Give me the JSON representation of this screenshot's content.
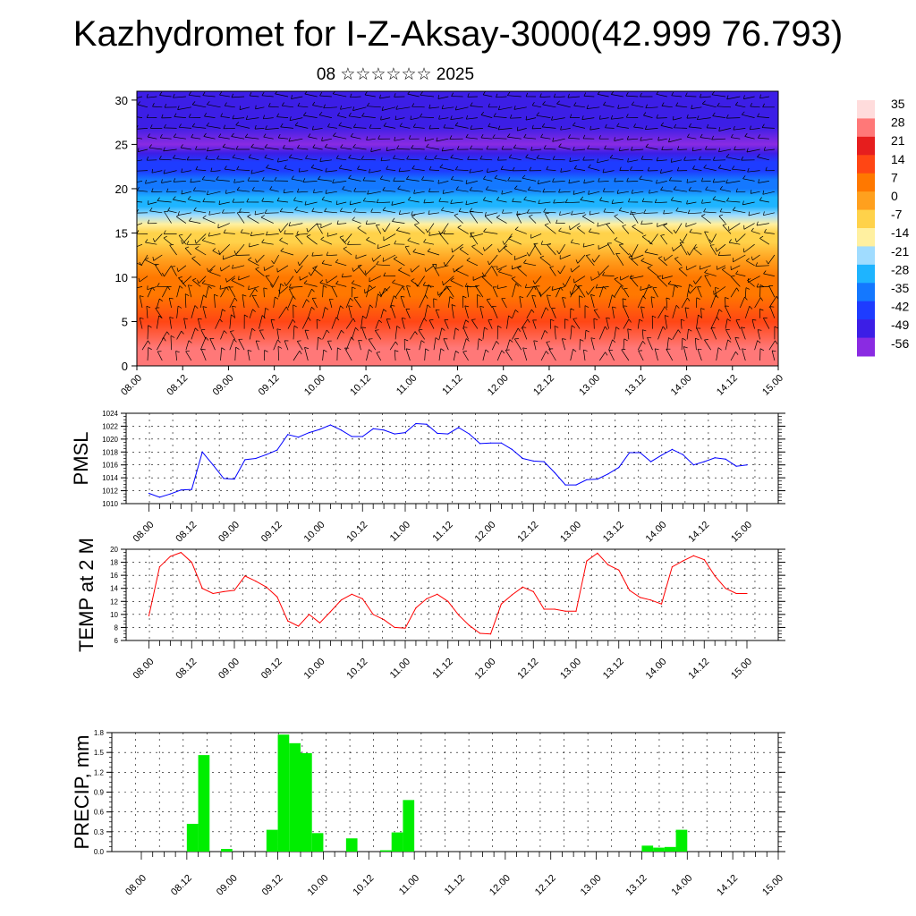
{
  "title": "Kazhydromet for I-Z-Aksay-3000(42.999 76.793)",
  "subtitle": "08 ☆☆☆☆☆☆ 2025",
  "time_labels": [
    "08.00",
    "08.12",
    "09.00",
    "09.12",
    "10.00",
    "10.12",
    "11.00",
    "11.12",
    "12.00",
    "12.12",
    "13.00",
    "13.12",
    "14.00",
    "14.12",
    "15.00"
  ],
  "chart_data": [
    {
      "type": "heatmap",
      "name": "cross-section",
      "x": [
        "08.00",
        "08.12",
        "09.00",
        "09.12",
        "10.00",
        "10.12",
        "11.00",
        "11.12",
        "12.00",
        "12.12",
        "13.00",
        "13.12",
        "14.00",
        "14.12",
        "15.00"
      ],
      "yticks": [
        0,
        5,
        10,
        15,
        20,
        25,
        30
      ],
      "ylim": [
        0,
        31
      ],
      "colorbar": {
        "labels": [
          "35",
          "28",
          "21",
          "14",
          "7",
          "0",
          "-7",
          "-14",
          "-21",
          "-28",
          "-35",
          "-42",
          "-49",
          "-56"
        ],
        "range": [
          -60,
          38
        ],
        "colors": [
          "#8a2be2",
          "#3c1ee6",
          "#1e3cff",
          "#1478ff",
          "#1eb4ff",
          "#a0dcff",
          "#fff0a0",
          "#ffd24a",
          "#ffa01e",
          "#ff7800",
          "#ff4614",
          "#e61e1e",
          "#ff7878",
          "#ffdcdc"
        ]
      },
      "temperature_profile": {
        "levels": [
          0,
          2,
          5,
          8,
          10,
          12,
          14,
          15,
          16,
          17,
          18,
          19,
          20,
          21,
          22,
          23,
          24,
          25,
          27,
          31
        ],
        "values": [
          28,
          24,
          14,
          7,
          3,
          -2,
          -7,
          -10,
          -16,
          -21,
          -26,
          -31,
          -35,
          -38,
          -42,
          -46,
          -52,
          -56,
          -49,
          -49
        ]
      },
      "wind_barbs": true
    },
    {
      "type": "line",
      "name": "PMSL",
      "ylabel": "PMSL",
      "yticks": [
        1010,
        1012,
        1014,
        1016,
        1018,
        1020,
        1022,
        1024
      ],
      "ylim": [
        1010,
        1024
      ],
      "color": "#0000ff",
      "values": [
        1011.6,
        1011.0,
        1011.5,
        1012.1,
        1012.2,
        1018.0,
        1016.0,
        1013.9,
        1013.8,
        1016.8,
        1017.0,
        1017.6,
        1018.3,
        1020.7,
        1020.3,
        1021.0,
        1021.5,
        1022.2,
        1021.4,
        1020.4,
        1020.4,
        1021.6,
        1021.4,
        1020.8,
        1021.0,
        1022.4,
        1022.3,
        1020.9,
        1020.8,
        1021.8,
        1020.8,
        1019.3,
        1019.4,
        1019.4,
        1018.4,
        1017.0,
        1016.6,
        1016.5,
        1014.8,
        1012.9,
        1012.9,
        1013.7,
        1013.8,
        1014.6,
        1015.6,
        1017.9,
        1017.9,
        1016.5,
        1017.5,
        1018.4,
        1017.6,
        1016.0,
        1016.5,
        1017.1,
        1016.9,
        1015.8,
        1016.0
      ]
    },
    {
      "type": "line",
      "name": "TEMP at 2 M",
      "ylabel": "TEMP at 2 M",
      "yticks": [
        6,
        8,
        10,
        12,
        14,
        16,
        18,
        20
      ],
      "ylim": [
        6,
        20
      ],
      "color": "#ff0000",
      "values": [
        9.8,
        17.3,
        18.9,
        19.5,
        18.0,
        14.0,
        13.2,
        13.5,
        13.7,
        15.9,
        15.1,
        14.2,
        12.7,
        9.0,
        8.2,
        10.0,
        8.7,
        10.4,
        12.2,
        13.1,
        12.4,
        10.0,
        9.2,
        8.0,
        7.9,
        11.0,
        12.4,
        13.1,
        12.0,
        9.9,
        8.3,
        7.1,
        7.0,
        11.6,
        13.0,
        14.2,
        13.5,
        10.8,
        10.8,
        10.5,
        10.5,
        18.2,
        19.4,
        17.6,
        16.8,
        13.7,
        12.6,
        12.2,
        11.6,
        17.3,
        18.2,
        19.0,
        18.4,
        15.9,
        14.0,
        13.2,
        13.2
      ]
    },
    {
      "type": "bar",
      "name": "PRECIP, mm",
      "ylabel": "PRECIP, mm",
      "yticks_labels": [
        "0.0",
        "0.3",
        "0.6",
        "0.9",
        "1.2",
        "1.5",
        "1.8"
      ],
      "yticks": [
        0,
        0.3,
        0.6,
        0.9,
        1.2,
        1.5,
        1.8
      ],
      "ylim": [
        0,
        1.8
      ],
      "color": "#00ee00",
      "values": [
        0,
        0,
        0,
        0,
        0,
        0.42,
        1.46,
        0,
        0.04,
        0,
        0,
        0,
        0.33,
        1.77,
        1.64,
        1.49,
        0.28,
        0,
        0,
        0.2,
        0,
        0,
        0.02,
        0.29,
        0.78,
        0,
        0,
        0,
        0,
        0,
        0,
        0,
        0,
        0,
        0,
        0,
        0,
        0,
        0,
        0,
        0,
        0,
        0,
        0,
        0,
        0.09,
        0.06,
        0.07,
        0.33,
        0,
        0,
        0,
        0,
        0,
        0,
        0,
        0
      ]
    }
  ]
}
